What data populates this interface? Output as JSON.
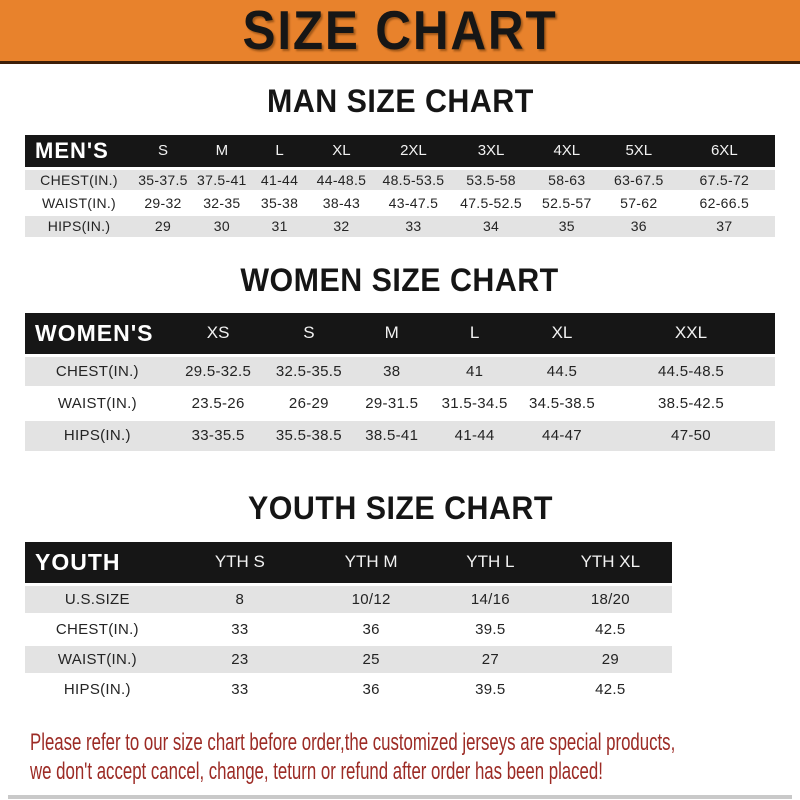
{
  "banner": {
    "title": "SIZE CHART",
    "bg_color": "#E8822C"
  },
  "sections": [
    {
      "heading": "MAN SIZE CHART",
      "group_label": "MEN'S",
      "columns": [
        "S",
        "M",
        "L",
        "XL",
        "2XL",
        "3XL",
        "4XL",
        "5XL",
        "6XL"
      ],
      "rows": [
        {
          "label": "CHEST(IN.)",
          "values": [
            "35-37.5",
            "37.5-41",
            "41-44",
            "44-48.5",
            "48.5-53.5",
            "53.5-58",
            "58-63",
            "63-67.5",
            "67.5-72"
          ]
        },
        {
          "label": "WAIST(IN.)",
          "values": [
            "29-32",
            "32-35",
            "35-38",
            "38-43",
            "43-47.5",
            "47.5-52.5",
            "52.5-57",
            "57-62",
            "62-66.5"
          ]
        },
        {
          "label": "HIPS(IN.)",
          "values": [
            "29",
            "30",
            "31",
            "32",
            "33",
            "34",
            "35",
            "36",
            "37"
          ]
        }
      ]
    },
    {
      "heading": "WOMEN SIZE CHART",
      "group_label": "WOMEN'S",
      "columns": [
        "XS",
        "S",
        "M",
        "L",
        "XL",
        "XXL"
      ],
      "rows": [
        {
          "label": "CHEST(IN.)",
          "values": [
            "29.5-32.5",
            "32.5-35.5",
            "38",
            "41",
            "44.5",
            "44.5-48.5"
          ]
        },
        {
          "label": "WAIST(IN.)",
          "values": [
            "23.5-26",
            "26-29",
            "29-31.5",
            "31.5-34.5",
            "34.5-38.5",
            "38.5-42.5"
          ]
        },
        {
          "label": "HIPS(IN.)",
          "values": [
            "33-35.5",
            "35.5-38.5",
            "38.5-41",
            "41-44",
            "44-47",
            "47-50"
          ]
        }
      ]
    },
    {
      "heading": "YOUTH SIZE CHART",
      "group_label": "YOUTH",
      "columns": [
        "YTH S",
        "YTH M",
        "YTH L",
        "YTH XL"
      ],
      "rows": [
        {
          "label": "U.S.SIZE",
          "values": [
            "8",
            "10/12",
            "14/16",
            "18/20"
          ]
        },
        {
          "label": "CHEST(IN.)",
          "values": [
            "33",
            "36",
            "39.5",
            "42.5"
          ]
        },
        {
          "label": "WAIST(IN.)",
          "values": [
            "23",
            "25",
            "27",
            "29"
          ]
        },
        {
          "label": "HIPS(IN.)",
          "values": [
            "33",
            "36",
            "39.5",
            "42.5"
          ]
        }
      ]
    }
  ],
  "footer": {
    "line1": "Please refer to our size chart before order,the customized jerseys are special products,",
    "line2": "we don't accept cancel, change, teturn or refund after order has been placed!",
    "text_color": "#9C2B25"
  }
}
